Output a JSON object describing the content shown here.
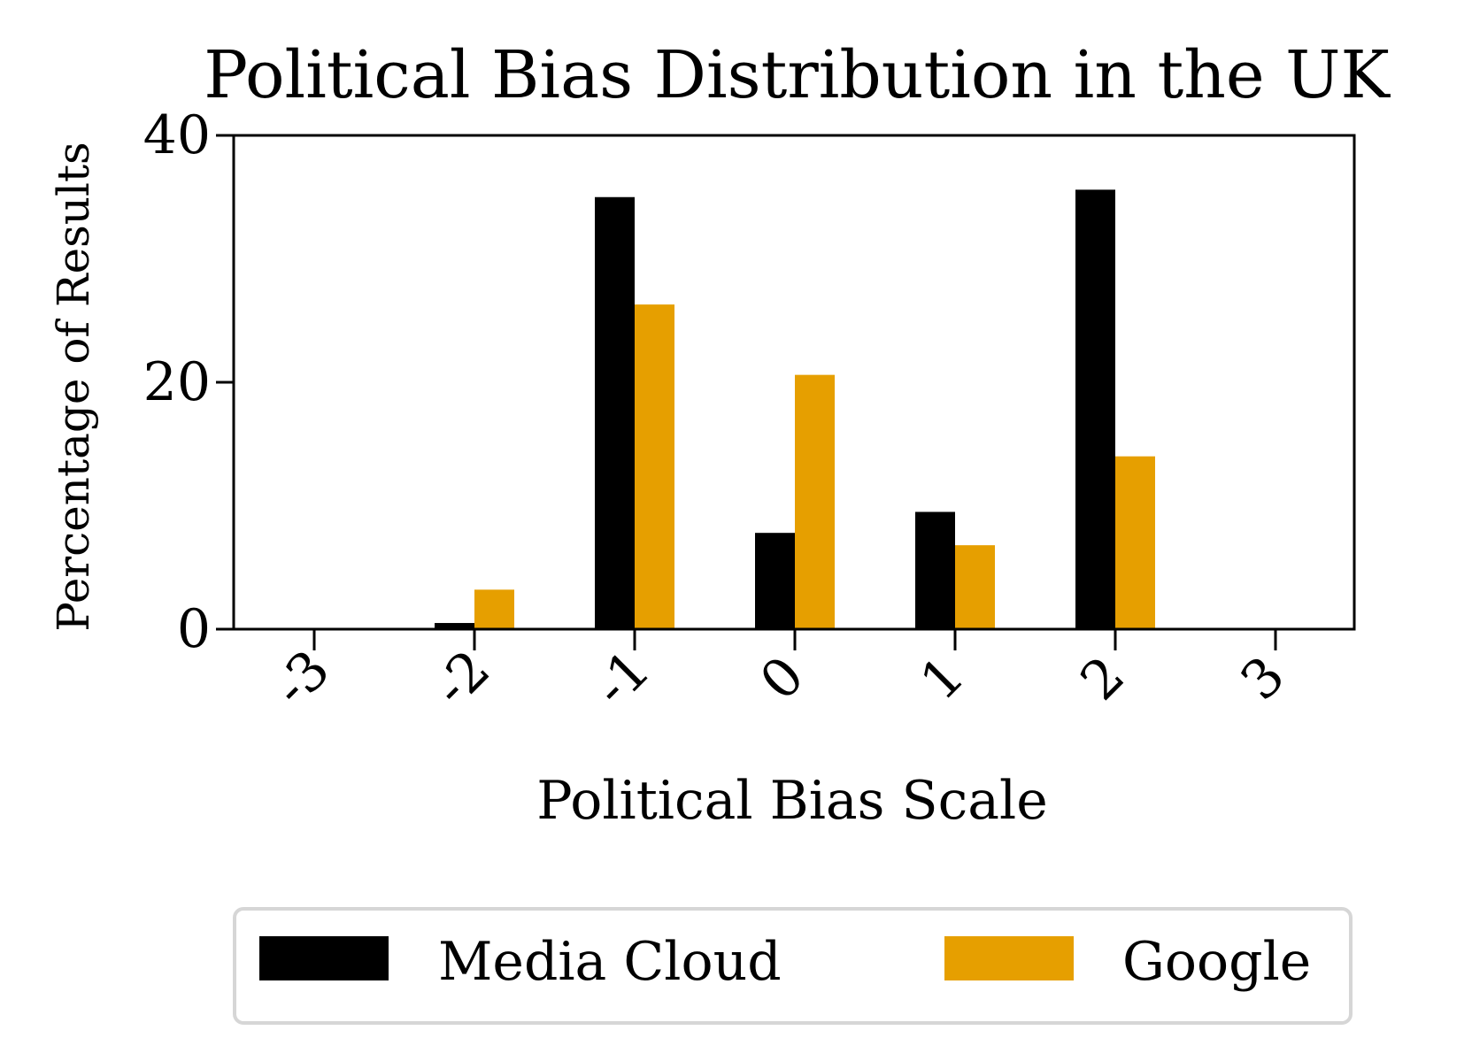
{
  "chart_data": {
    "type": "bar",
    "title": "Political Bias Distribution in the UK",
    "xlabel": "Political Bias Scale",
    "ylabel": "Percentage of Results",
    "categories": [
      "-3",
      "-2",
      "-1",
      "0",
      "1",
      "2",
      "3"
    ],
    "series": [
      {
        "name": "Media Cloud",
        "color": "#000000",
        "values": [
          0,
          0.5,
          35,
          7.8,
          9.5,
          35.6,
          0
        ]
      },
      {
        "name": "Google",
        "color": "#E69F00",
        "values": [
          0,
          3.2,
          26.3,
          20.6,
          6.8,
          14,
          0
        ]
      }
    ],
    "ylim": [
      0,
      40
    ],
    "yticks": [
      0,
      20,
      40
    ],
    "grid": false,
    "legend_position": "bottom"
  }
}
